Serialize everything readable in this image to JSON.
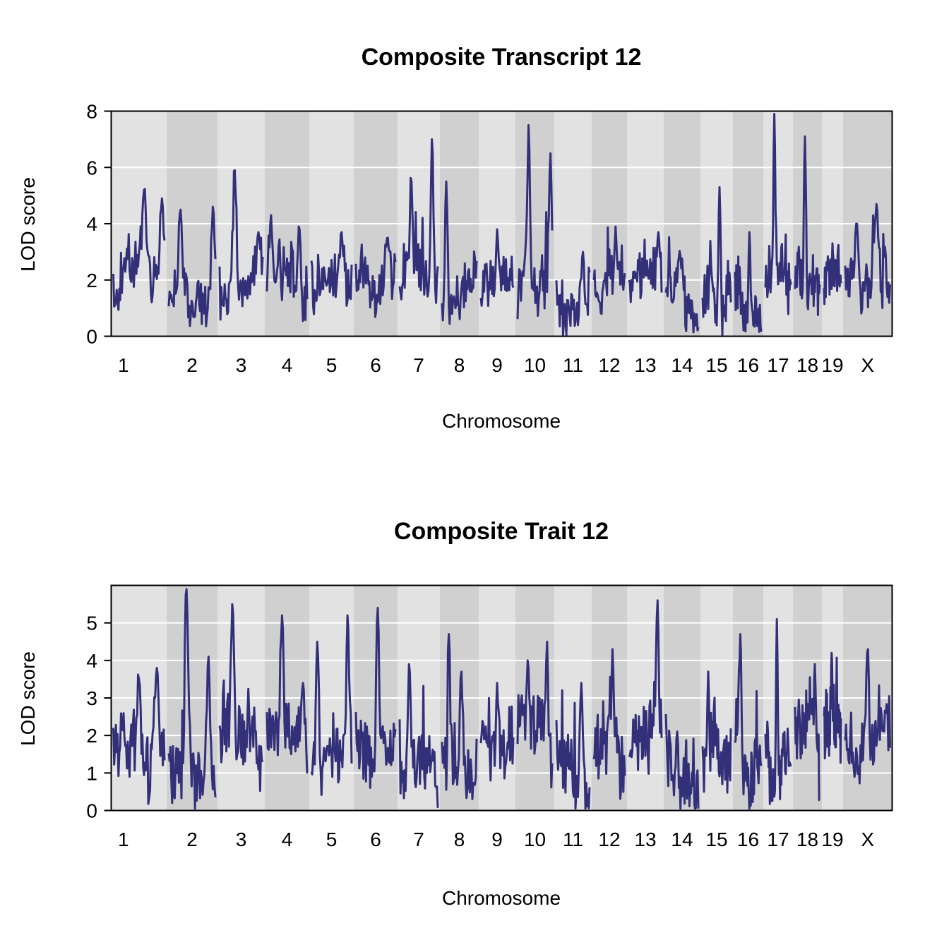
{
  "colors": {
    "line": "#33307a",
    "band_light": "#e2e2e2",
    "band_dark": "#d0d0d0",
    "grid": "#ffffff",
    "frame": "#000000"
  },
  "chromosomes": [
    {
      "name": "1",
      "range": [
        157.5,
        236
      ]
    },
    {
      "name": "2",
      "range": [
        236,
        308
      ]
    },
    {
      "name": "3",
      "range": [
        308,
        375
      ]
    },
    {
      "name": "4",
      "range": [
        375,
        438
      ]
    },
    {
      "name": "5",
      "range": [
        438,
        501
      ]
    },
    {
      "name": "6",
      "range": [
        501,
        563
      ]
    },
    {
      "name": "7",
      "range": [
        563,
        623
      ]
    },
    {
      "name": "8",
      "range": [
        623,
        678
      ]
    },
    {
      "name": "9",
      "range": [
        678,
        730
      ]
    },
    {
      "name": "10",
      "range": [
        730,
        785
      ]
    },
    {
      "name": "11",
      "range": [
        785,
        838
      ]
    },
    {
      "name": "12",
      "range": [
        838,
        888
      ]
    },
    {
      "name": "13",
      "range": [
        888,
        940
      ]
    },
    {
      "name": "14",
      "range": [
        940,
        992
      ]
    },
    {
      "name": "15",
      "range": [
        992,
        1038
      ]
    },
    {
      "name": "16",
      "range": [
        1038,
        1081
      ]
    },
    {
      "name": "17",
      "range": [
        1081,
        1123
      ]
    },
    {
      "name": "18",
      "range": [
        1123,
        1164
      ]
    },
    {
      "name": "19",
      "range": [
        1164,
        1194
      ]
    },
    {
      "name": "X",
      "range": [
        1194,
        1263.5
      ]
    }
  ],
  "chart_data": [
    {
      "type": "line",
      "title": "Composite Transcript 12",
      "xlabel": "Chromosome",
      "ylabel": "LOD score",
      "ylim": [
        0,
        8
      ],
      "yticks": [
        0,
        2,
        4,
        6,
        8
      ],
      "grid": true,
      "peaks": [
        {
          "chr": "1",
          "position": 0.6,
          "lod": 5.2
        },
        {
          "chr": "1",
          "position": 0.95,
          "lod": 4.9
        },
        {
          "chr": "2",
          "position": 0.25,
          "lod": 4.5
        },
        {
          "chr": "2",
          "position": 0.95,
          "lod": 4.6
        },
        {
          "chr": "3",
          "position": 0.35,
          "lod": 5.9
        },
        {
          "chr": "3",
          "position": 0.9,
          "lod": 3.7
        },
        {
          "chr": "4",
          "position": 0.1,
          "lod": 4.3
        },
        {
          "chr": "4",
          "position": 0.8,
          "lod": 3.9
        },
        {
          "chr": "5",
          "position": 0.75,
          "lod": 3.7
        },
        {
          "chr": "6",
          "position": 0.8,
          "lod": 3.5
        },
        {
          "chr": "7",
          "position": 0.3,
          "lod": 5.5
        },
        {
          "chr": "7",
          "position": 0.85,
          "lod": 7.0
        },
        {
          "chr": "8",
          "position": 0.12,
          "lod": 5.5
        },
        {
          "chr": "9",
          "position": 0.5,
          "lod": 3.8
        },
        {
          "chr": "10",
          "position": 0.32,
          "lod": 7.5
        },
        {
          "chr": "10",
          "position": 0.95,
          "lod": 6.5
        },
        {
          "chr": "11",
          "position": 0.8,
          "lod": 3.0
        },
        {
          "chr": "12",
          "position": 0.7,
          "lod": 3.9
        },
        {
          "chr": "13",
          "position": 0.9,
          "lod": 3.7
        },
        {
          "chr": "14",
          "position": 0.4,
          "lod": 2.8
        },
        {
          "chr": "15",
          "position": 0.6,
          "lod": 5.3
        },
        {
          "chr": "16",
          "position": 0.55,
          "lod": 3.7
        },
        {
          "chr": "17",
          "position": 0.35,
          "lod": 7.9
        },
        {
          "chr": "18",
          "position": 0.4,
          "lod": 7.1
        },
        {
          "chr": "19",
          "position": 0.5,
          "lod": 3.3
        },
        {
          "chr": "X",
          "position": 0.25,
          "lod": 4.0
        },
        {
          "chr": "X",
          "position": 0.7,
          "lod": 4.7
        }
      ]
    },
    {
      "type": "line",
      "title": "Composite Trait 12",
      "xlabel": "Chromosome",
      "ylabel": "LOD score",
      "ylim": [
        0,
        6
      ],
      "yticks": [
        0,
        1,
        2,
        3,
        4,
        5
      ],
      "grid": true,
      "peaks": [
        {
          "chr": "1",
          "position": 0.5,
          "lod": 3.5
        },
        {
          "chr": "1",
          "position": 0.85,
          "lod": 3.8
        },
        {
          "chr": "2",
          "position": 0.38,
          "lod": 5.9
        },
        {
          "chr": "2",
          "position": 0.85,
          "lod": 4.1
        },
        {
          "chr": "3",
          "position": 0.3,
          "lod": 5.5
        },
        {
          "chr": "4",
          "position": 0.38,
          "lod": 5.2
        },
        {
          "chr": "4",
          "position": 0.9,
          "lod": 3.4
        },
        {
          "chr": "5",
          "position": 0.15,
          "lod": 4.5
        },
        {
          "chr": "5",
          "position": 0.9,
          "lod": 5.2
        },
        {
          "chr": "6",
          "position": 0.55,
          "lod": 5.4
        },
        {
          "chr": "7",
          "position": 0.25,
          "lod": 3.9
        },
        {
          "chr": "8",
          "position": 0.2,
          "lod": 4.7
        },
        {
          "chr": "8",
          "position": 0.55,
          "lod": 3.7
        },
        {
          "chr": "9",
          "position": 0.5,
          "lod": 3.4
        },
        {
          "chr": "10",
          "position": 0.3,
          "lod": 4.0
        },
        {
          "chr": "10",
          "position": 0.85,
          "lod": 4.5
        },
        {
          "chr": "11",
          "position": 0.75,
          "lod": 3.4
        },
        {
          "chr": "12",
          "position": 0.6,
          "lod": 4.3
        },
        {
          "chr": "13",
          "position": 0.87,
          "lod": 5.6
        },
        {
          "chr": "14",
          "position": 0.35,
          "lod": 2.1
        },
        {
          "chr": "15",
          "position": 0.2,
          "lod": 3.7
        },
        {
          "chr": "16",
          "position": 0.2,
          "lod": 4.7
        },
        {
          "chr": "17",
          "position": 0.45,
          "lod": 5.1
        },
        {
          "chr": "18",
          "position": 0.8,
          "lod": 3.9
        },
        {
          "chr": "19",
          "position": 0.45,
          "lod": 4.2
        },
        {
          "chr": "X",
          "position": 0.5,
          "lod": 4.3
        }
      ]
    }
  ]
}
